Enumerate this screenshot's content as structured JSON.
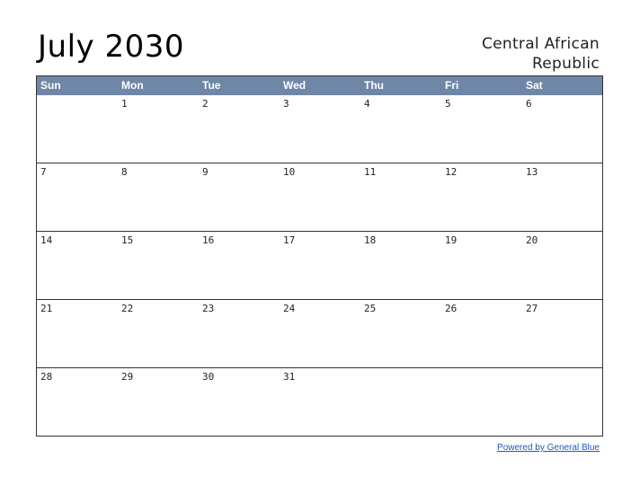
{
  "header": {
    "title": "July 2030",
    "country_line1": "Central African",
    "country_line2": "Republic"
  },
  "weekdays": [
    "Sun",
    "Mon",
    "Tue",
    "Wed",
    "Thu",
    "Fri",
    "Sat"
  ],
  "weeks": [
    [
      "",
      "1",
      "2",
      "3",
      "4",
      "5",
      "6"
    ],
    [
      "7",
      "8",
      "9",
      "10",
      "11",
      "12",
      "13"
    ],
    [
      "14",
      "15",
      "16",
      "17",
      "18",
      "19",
      "20"
    ],
    [
      "21",
      "22",
      "23",
      "24",
      "25",
      "26",
      "27"
    ],
    [
      "28",
      "29",
      "30",
      "31",
      "",
      "",
      ""
    ]
  ],
  "footer": {
    "link_text": "Powered by General Blue"
  },
  "colors": {
    "header_bg": "#6f86a7",
    "link": "#1a5bb8"
  }
}
